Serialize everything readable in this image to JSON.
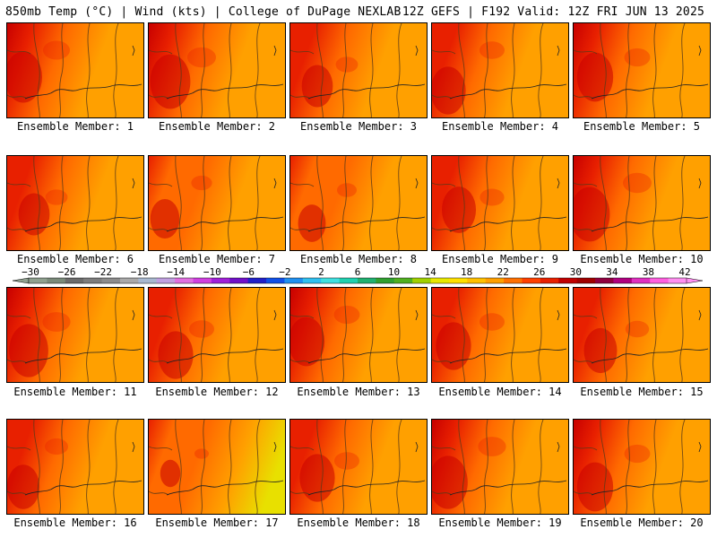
{
  "header": {
    "left": "850mb Temp (°C) | Wind (kts) | College of DuPage NEXLAB",
    "right": "12Z GEFS | F192 Valid: 12Z FRI JUN 13 2025"
  },
  "members": [
    {
      "label": "Ensemble Member: 1",
      "heat": 0.75
    },
    {
      "label": "Ensemble Member: 2",
      "heat": 0.8
    },
    {
      "label": "Ensemble Member: 3",
      "heat": 0.62
    },
    {
      "label": "Ensemble Member: 4",
      "heat": 0.7
    },
    {
      "label": "Ensemble Member: 5",
      "heat": 0.72
    },
    {
      "label": "Ensemble Member: 6",
      "heat": 0.62
    },
    {
      "label": "Ensemble Member: 7",
      "heat": 0.58
    },
    {
      "label": "Ensemble Member: 8",
      "heat": 0.55
    },
    {
      "label": "Ensemble Member: 9",
      "heat": 0.68
    },
    {
      "label": "Ensemble Member: 10",
      "heat": 0.8
    },
    {
      "label": "Ensemble Member: 11",
      "heat": 0.78
    },
    {
      "label": "Ensemble Member: 12",
      "heat": 0.7
    },
    {
      "label": "Ensemble Member: 13",
      "heat": 0.72
    },
    {
      "label": "Ensemble Member: 14",
      "heat": 0.7
    },
    {
      "label": "Ensemble Member: 15",
      "heat": 0.66
    },
    {
      "label": "Ensemble Member: 16",
      "heat": 0.65
    },
    {
      "label": "Ensemble Member: 17",
      "heat": 0.4
    },
    {
      "label": "Ensemble Member: 18",
      "heat": 0.7
    },
    {
      "label": "Ensemble Member: 19",
      "heat": 0.78
    },
    {
      "label": "Ensemble Member: 20",
      "heat": 0.72
    }
  ],
  "colorbar": {
    "ticks": [
      "−30",
      "−26",
      "−22",
      "−18",
      "−14",
      "−10",
      "−6",
      "−2",
      "2",
      "6",
      "10",
      "14",
      "18",
      "22",
      "26",
      "30",
      "34",
      "38",
      "42"
    ],
    "colors": [
      "#8fa08f",
      "#7a8a7a",
      "#6b6b6b",
      "#7d7d7d",
      "#8c8c8c",
      "#a9a9a9",
      "#a8b8d0",
      "#c0a0e0",
      "#e070e0",
      "#d040e0",
      "#a020d8",
      "#7010c8",
      "#2020c8",
      "#1050e8",
      "#2090f0",
      "#30c0f0",
      "#40e0e0",
      "#20d0b0",
      "#20b070",
      "#30a030",
      "#50b020",
      "#a0d000",
      "#e8e800",
      "#ffe000",
      "#ffc000",
      "#ffa000",
      "#ff7000",
      "#ff4000",
      "#e82000",
      "#c00000",
      "#a00000",
      "#900040",
      "#b00080",
      "#e030c0",
      "#ff60e0",
      "#ff90f0"
    ]
  },
  "colors": {
    "cool": "#e8e000",
    "mid": "#ffa000",
    "warm": "#ff6a00",
    "hot": "#e82000",
    "hottest": "#c80000"
  }
}
